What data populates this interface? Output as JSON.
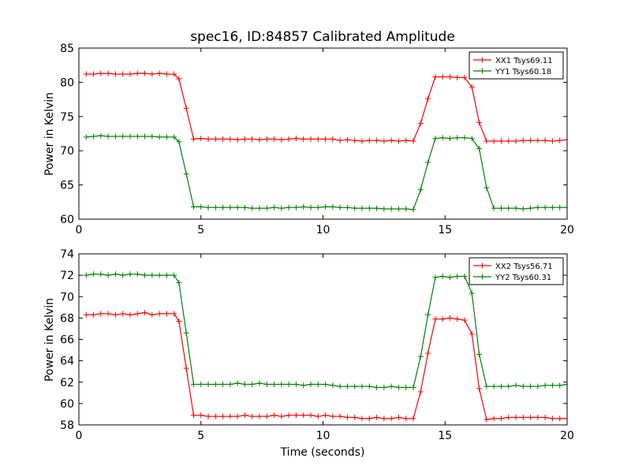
{
  "chart_data": [
    {
      "type": "line",
      "title": "spec16, ID:84857 Calibrated Amplitude",
      "xlabel": "",
      "ylabel": "Power in Kelvin",
      "xlim": [
        0,
        20
      ],
      "ylim": [
        60,
        85
      ],
      "xticks": [
        0,
        5,
        10,
        15,
        20
      ],
      "yticks": [
        60,
        65,
        70,
        75,
        80,
        85
      ],
      "grid": false,
      "legend_position": "top-right",
      "x": [
        0.3,
        0.6,
        0.9,
        1.2,
        1.5,
        1.8,
        2.1,
        2.4,
        2.7,
        3.0,
        3.3,
        3.6,
        3.9,
        4.1,
        4.4,
        4.7,
        5.0,
        5.3,
        5.6,
        5.9,
        6.2,
        6.5,
        6.8,
        7.1,
        7.4,
        7.7,
        8.0,
        8.3,
        8.6,
        8.9,
        9.2,
        9.5,
        9.8,
        10.1,
        10.4,
        10.7,
        11.0,
        11.3,
        11.6,
        11.9,
        12.2,
        12.5,
        12.8,
        13.1,
        13.4,
        13.7,
        14.0,
        14.3,
        14.6,
        14.9,
        15.2,
        15.5,
        15.8,
        16.1,
        16.4,
        16.7,
        17.0,
        17.3,
        17.6,
        17.9,
        18.2,
        18.5,
        18.8,
        19.1,
        19.4,
        19.7,
        20.0
      ],
      "series": [
        {
          "name": "XX1 Tsys69.11",
          "color": "#ff0000",
          "values": [
            81.2,
            81.2,
            81.3,
            81.3,
            81.2,
            81.2,
            81.2,
            81.3,
            81.3,
            81.2,
            81.3,
            81.2,
            81.2,
            80.5,
            76.2,
            71.7,
            71.8,
            71.7,
            71.7,
            71.7,
            71.7,
            71.6,
            71.7,
            71.7,
            71.6,
            71.7,
            71.7,
            71.6,
            71.7,
            71.8,
            71.7,
            71.7,
            71.7,
            71.7,
            71.7,
            71.5,
            71.6,
            71.5,
            71.4,
            71.5,
            71.5,
            71.4,
            71.5,
            71.4,
            71.5,
            71.4,
            74.0,
            77.6,
            80.8,
            80.8,
            80.8,
            80.7,
            80.7,
            79.3,
            74.1,
            71.4,
            71.4,
            71.4,
            71.4,
            71.4,
            71.5,
            71.5,
            71.5,
            71.5,
            71.4,
            71.5,
            71.6
          ]
        },
        {
          "name": "YY1 Tsys60.18",
          "color": "#008000",
          "values": [
            72.0,
            72.1,
            72.2,
            72.1,
            72.1,
            72.1,
            72.1,
            72.1,
            72.1,
            72.1,
            72.0,
            72.0,
            72.0,
            71.3,
            66.6,
            61.8,
            61.8,
            61.7,
            61.7,
            61.7,
            61.7,
            61.7,
            61.7,
            61.6,
            61.6,
            61.6,
            61.7,
            61.6,
            61.7,
            61.7,
            61.8,
            61.7,
            61.7,
            61.8,
            61.8,
            61.7,
            61.7,
            61.6,
            61.6,
            61.6,
            61.6,
            61.5,
            61.5,
            61.5,
            61.5,
            61.4,
            64.3,
            68.3,
            71.8,
            71.9,
            71.8,
            71.9,
            71.9,
            71.8,
            70.3,
            64.6,
            61.6,
            61.6,
            61.6,
            61.6,
            61.5,
            61.6,
            61.7,
            61.7,
            61.7,
            61.7,
            61.7
          ]
        }
      ]
    },
    {
      "type": "line",
      "title": "",
      "xlabel": "Time (seconds)",
      "ylabel": "Power in Kelvin",
      "xlim": [
        0,
        20
      ],
      "ylim": [
        58,
        74
      ],
      "xticks": [
        0,
        5,
        10,
        15,
        20
      ],
      "yticks": [
        58,
        60,
        62,
        64,
        66,
        68,
        70,
        72,
        74
      ],
      "grid": false,
      "legend_position": "top-right",
      "x": [
        0.3,
        0.6,
        0.9,
        1.2,
        1.5,
        1.8,
        2.1,
        2.4,
        2.7,
        3.0,
        3.3,
        3.6,
        3.9,
        4.1,
        4.4,
        4.7,
        5.0,
        5.3,
        5.6,
        5.9,
        6.2,
        6.5,
        6.8,
        7.1,
        7.4,
        7.7,
        8.0,
        8.3,
        8.6,
        8.9,
        9.2,
        9.5,
        9.8,
        10.1,
        10.4,
        10.7,
        11.0,
        11.3,
        11.6,
        11.9,
        12.2,
        12.5,
        12.8,
        13.1,
        13.4,
        13.7,
        14.0,
        14.3,
        14.6,
        14.9,
        15.2,
        15.5,
        15.8,
        16.1,
        16.4,
        16.7,
        17.0,
        17.3,
        17.6,
        17.9,
        18.2,
        18.5,
        18.8,
        19.1,
        19.4,
        19.7,
        20.0
      ],
      "series": [
        {
          "name": "XX2 Tsys56.71",
          "color": "#ff0000",
          "values": [
            68.3,
            68.3,
            68.4,
            68.4,
            68.3,
            68.4,
            68.3,
            68.4,
            68.5,
            68.3,
            68.4,
            68.4,
            68.4,
            67.7,
            63.3,
            58.9,
            58.9,
            58.8,
            58.8,
            58.8,
            58.8,
            58.8,
            58.9,
            58.8,
            58.8,
            58.8,
            58.9,
            58.8,
            58.9,
            58.9,
            58.9,
            58.9,
            58.8,
            58.9,
            58.8,
            58.8,
            58.7,
            58.7,
            58.6,
            58.6,
            58.7,
            58.6,
            58.6,
            58.7,
            58.6,
            58.6,
            61.1,
            64.7,
            67.9,
            67.9,
            68.0,
            67.9,
            67.8,
            66.5,
            61.4,
            58.5,
            58.6,
            58.6,
            58.7,
            58.7,
            58.7,
            58.7,
            58.7,
            58.7,
            58.6,
            58.6,
            58.6
          ]
        },
        {
          "name": "YY2 Tsys60.31",
          "color": "#008000",
          "values": [
            72.0,
            72.1,
            72.1,
            72.0,
            72.1,
            72.0,
            72.1,
            72.1,
            72.0,
            72.0,
            72.0,
            72.0,
            72.0,
            71.3,
            66.6,
            61.8,
            61.8,
            61.8,
            61.8,
            61.8,
            61.8,
            61.9,
            61.8,
            61.8,
            61.9,
            61.8,
            61.8,
            61.8,
            61.8,
            61.8,
            61.7,
            61.8,
            61.8,
            61.8,
            61.7,
            61.6,
            61.6,
            61.6,
            61.6,
            61.6,
            61.5,
            61.5,
            61.6,
            61.5,
            61.5,
            61.5,
            64.4,
            68.3,
            71.8,
            71.9,
            71.8,
            71.9,
            71.9,
            70.3,
            64.6,
            61.6,
            61.6,
            61.6,
            61.6,
            61.7,
            61.6,
            61.6,
            61.6,
            61.7,
            61.7,
            61.7,
            61.8
          ]
        }
      ]
    }
  ]
}
